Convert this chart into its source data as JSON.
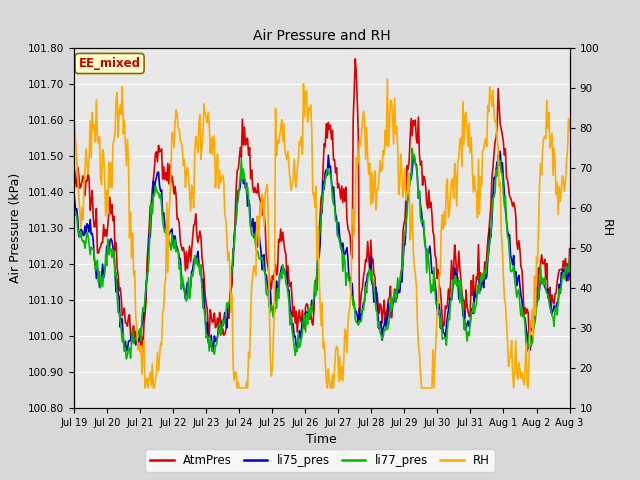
{
  "title": "Air Pressure and RH",
  "xlabel": "Time",
  "ylabel_left": "Air Pressure (kPa)",
  "ylabel_right": "RH",
  "annotation": "EE_mixed",
  "ylim_left": [
    100.8,
    101.8
  ],
  "ylim_right": [
    10,
    100
  ],
  "yticks_left": [
    100.8,
    100.9,
    101.0,
    101.1,
    101.2,
    101.3,
    101.4,
    101.5,
    101.6,
    101.7,
    101.8
  ],
  "yticks_right": [
    10,
    20,
    30,
    40,
    50,
    60,
    70,
    80,
    90,
    100
  ],
  "xtick_labels": [
    "Jul 19",
    "Jul 20",
    "Jul 21",
    "Jul 22",
    "Jul 23",
    "Jul 24",
    "Jul 25",
    "Jul 26",
    "Jul 27",
    "Jul 28",
    "Jul 29",
    "Jul 30",
    "Jul 31",
    "Aug 1",
    "Aug 2",
    "Aug 3"
  ],
  "colors": {
    "AtmPres": "#dd0000",
    "li75_pres": "#0000cc",
    "li77_pres": "#00bb00",
    "RH": "#ffaa00"
  },
  "background_color": "#d8d8d8",
  "plot_bg_color": "#e8e8e8",
  "grid_color": "#ffffff",
  "annotation_bg": "#ffffcc",
  "annotation_border": "#886600",
  "annotation_text_color": "#cc0000",
  "title_color": "#000000",
  "linewidth": 1.2,
  "legend_linewidth": 1.8
}
